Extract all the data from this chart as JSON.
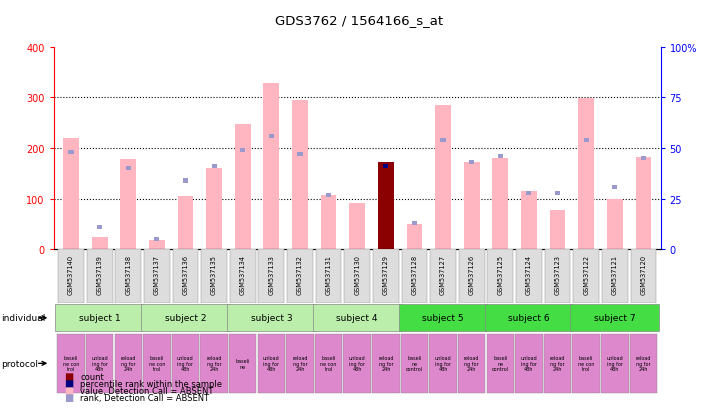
{
  "title": "GDS3762 / 1564166_s_at",
  "samples": [
    "GSM537140",
    "GSM537139",
    "GSM537138",
    "GSM537137",
    "GSM537136",
    "GSM537135",
    "GSM537134",
    "GSM537133",
    "GSM537132",
    "GSM537131",
    "GSM537130",
    "GSM537129",
    "GSM537128",
    "GSM537127",
    "GSM537126",
    "GSM537125",
    "GSM537124",
    "GSM537123",
    "GSM537122",
    "GSM537121",
    "GSM537120"
  ],
  "values": [
    220,
    25,
    178,
    18,
    105,
    160,
    248,
    328,
    294,
    108,
    91,
    172,
    50,
    285,
    172,
    180,
    115,
    78,
    298,
    100,
    183
  ],
  "ranks_pct": [
    48,
    11,
    40,
    5,
    34,
    41,
    49,
    56,
    47,
    27,
    null,
    41,
    13,
    54,
    43,
    46,
    28,
    28,
    54,
    31,
    45
  ],
  "count_index": 11,
  "count_value": 172,
  "count_rank_pct": 41,
  "value_color_absent": "#FFB6C1",
  "rank_color_absent": "#9999CC",
  "count_color": "#8B0000",
  "count_rank_color": "#000080",
  "subjects": [
    {
      "label": "subject 1",
      "start": 0,
      "end": 3,
      "color": "#BBEEAA"
    },
    {
      "label": "subject 2",
      "start": 3,
      "end": 6,
      "color": "#BBEEAA"
    },
    {
      "label": "subject 3",
      "start": 6,
      "end": 9,
      "color": "#BBEEAA"
    },
    {
      "label": "subject 4",
      "start": 9,
      "end": 12,
      "color": "#BBEEAA"
    },
    {
      "label": "subject 5",
      "start": 12,
      "end": 15,
      "color": "#44DD44"
    },
    {
      "label": "subject 6",
      "start": 15,
      "end": 18,
      "color": "#44DD44"
    },
    {
      "label": "subject 7",
      "start": 18,
      "end": 21,
      "color": "#44DD44"
    }
  ],
  "proto_labels": [
    "baseli\nne con\ntrol",
    "unload\ning for\n48h",
    "reload\nng for\n24h",
    "baseli\nne con\ntrol",
    "unload\ning for\n48h",
    "reload\nng for\n24h",
    "baseli\nne",
    "unload\ning for\n48h",
    "reload\nng for\n24h",
    "baseli\nne con\ntrol",
    "unload\ning for\n48h",
    "reload\nng for\n24h",
    "baseli\nne\ncontrol",
    "unload\ning for\n48h",
    "reload\nng for\n24h",
    "baseli\nne\ncontrol",
    "unload\ning for\n48h",
    "reload\nng for\n24h",
    "baseli\nne con\ntrol",
    "unload\ning for\n48h",
    "reload\nng for\n24h"
  ],
  "proto_color": "#DD88CC",
  "ylim": [
    0,
    400
  ],
  "yticks_left": [
    0,
    100,
    200,
    300,
    400
  ],
  "ytick_labels_right": [
    "0",
    "25",
    "50",
    "75",
    "100%"
  ]
}
